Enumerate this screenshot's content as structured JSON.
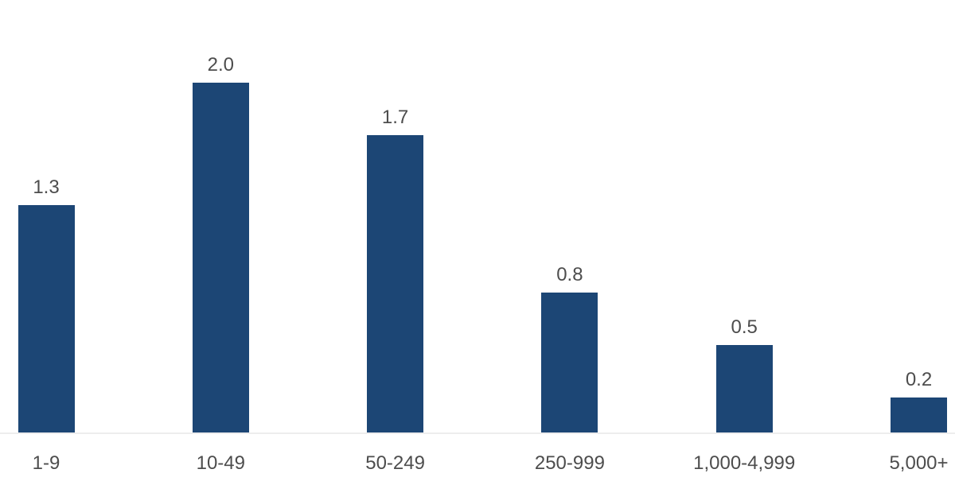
{
  "chart_data": {
    "type": "bar",
    "title": "",
    "xlabel": "",
    "ylabel": "",
    "categories": [
      "1-9",
      "10-49",
      "50-249",
      "250-999",
      "1,000-4,999",
      "5,000+"
    ],
    "values": [
      1.3,
      2.0,
      1.7,
      0.8,
      0.5,
      0.2
    ],
    "value_labels": [
      "1.3",
      "2.0",
      "1.7",
      "0.8",
      "0.5",
      "0.2"
    ],
    "ylim": [
      0,
      2.5
    ],
    "grid": false,
    "legend": false,
    "bar_color": "#1C4675",
    "value_label_color": "#4D4D4D",
    "tick_label_color": "#4D4D4D",
    "axis_line_color": "#EDEDED",
    "background_color": "#FFFFFF"
  }
}
